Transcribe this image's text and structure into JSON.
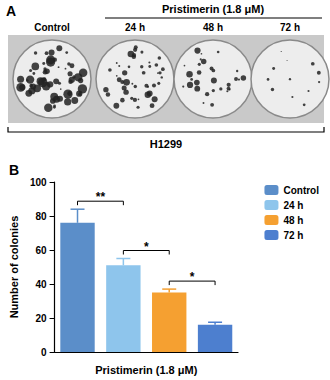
{
  "panel_a": {
    "label": "A",
    "header": "Pristimerin (1.8 μM)",
    "columns": [
      "Control",
      "24 h",
      "48 h",
      "72 h"
    ],
    "cell_line": "H1299"
  },
  "chart_data": {
    "type": "bar",
    "title": "B",
    "categories": [
      "Control",
      "24 h",
      "48 h",
      "72 h"
    ],
    "values": [
      76,
      51,
      35,
      16
    ],
    "errors": [
      8,
      4,
      2,
      1.5
    ],
    "colors": [
      "#5b8ec9",
      "#8ec5ec",
      "#f5a031",
      "#4d7fcf"
    ],
    "ylabel": "Number of colonies",
    "xlabel": "Pristimerin (1.8 μM)",
    "ylim": [
      0,
      100
    ],
    "yticks": [
      0,
      20,
      40,
      60,
      80,
      100
    ],
    "grid": false,
    "legend": "upper right",
    "tick_labels": "y",
    "annotations": [
      {
        "from": "Control",
        "to": "24 h",
        "label": "**"
      },
      {
        "from": "24 h",
        "to": "48 h",
        "label": "*"
      },
      {
        "from": "48 h",
        "to": "72 h",
        "label": "*"
      }
    ]
  }
}
